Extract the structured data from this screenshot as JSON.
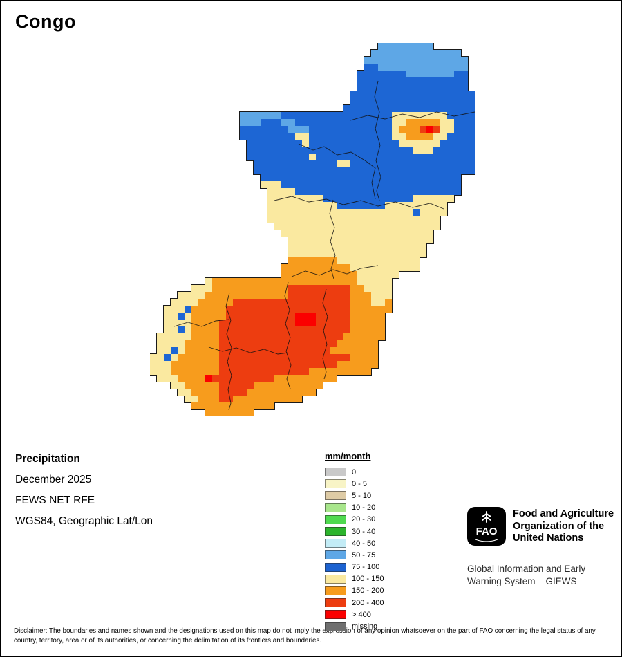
{
  "title": "Congo",
  "info": {
    "label": "Precipitation",
    "date": "December 2025",
    "source": "FEWS NET RFE",
    "projection": "WGS84, Geographic Lat/Lon"
  },
  "legend": {
    "title": "mm/month",
    "entries": [
      {
        "label": "0",
        "color": "#C9C9C9"
      },
      {
        "label": "0 - 5",
        "color": "#F8F4C6"
      },
      {
        "label": "5 - 10",
        "color": "#DECBA5"
      },
      {
        "label": "10 - 20",
        "color": "#A8E68C"
      },
      {
        "label": "20 - 30",
        "color": "#4FDA4F"
      },
      {
        "label": "30 - 40",
        "color": "#2CB42C"
      },
      {
        "label": "40 - 50",
        "color": "#C3ECF6"
      },
      {
        "label": "50 - 75",
        "color": "#5EA7E6"
      },
      {
        "label": "75 - 100",
        "color": "#1C62D0"
      },
      {
        "label": "100 - 150",
        "color": "#FAE9A0"
      },
      {
        "label": "150 - 200",
        "color": "#F79C1D"
      },
      {
        "label": "200 - 400",
        "color": "#ED3D10"
      },
      {
        "label": "> 400",
        "color": "#FB0000"
      },
      {
        "label": "missing",
        "color": "#6F6F6F"
      }
    ]
  },
  "map": {
    "cell": 10,
    "colors": {
      "l": "#5EA7E6",
      "b": "#1D66D4",
      "y": "#FAE9A0",
      "o": "#F79C1D",
      "r": "#ED3D10",
      "R": "#FB0000"
    },
    "grid": [
      ".................................llllllll......",
      "................................lllllllllllll..",
      "...............................lllllllllllllll.",
      "...............................bblllllllllllll.",
      "..............................bbbbbbblllllllbb.",
      "..............................bbbbbbbbbbbbbbbb.",
      "..............................bbbbbbbbbbbbbbbb.",
      ".............................bbbbbbbbbbbbbbbbbb",
      ".............................bbbbbbbbbbbbbbbbbb",
      "............................bbbbbbbbbbbbbbbbbbb",
      ".............llllllbbbbbbbbbbbbbbbbyyyyyyyybbbb",
      ".............lllbbbllbbbbbbbbbbbbbbyyoooooyybbb",
      ".............bbbbbbblllbbbbbbbbbbbbyooorRryybbb",
      ".............bbbbbbbbyybbbbbbbbbbbbyyooooyybbbb",
      "..............bbbbbbbbybbbbbbbbbbbbbyyyyyybbbbb",
      "..............bbbbbbbbbbbbbbbbbbbbbbbbyyybbbbbb",
      "..............bbbbbbbbbybbbbbbbbbbbbbbbbbbbbbbb",
      "...............bbbbbbbbbbbbyybbbbbbbbbbbbbbbbbb",
      "...............bbbbbbbbbbbbbbbbbbbbbbbbbbbbbbbb",
      "................bbbbbbbbbbbbbbbbbbbbbbbbbbbbb..",
      "................yyybbbbbbbbbbbbbbbbbbbbbbbbbb..",
      ".................yyyybbbbbbbbbbbbbbbbbbbbbbbb..",
      ".................yyyyyyyybbbbbbbbbbbbbyyyyyy...",
      ".................yyyyyyyyyybbbbbbbyyyyyyyyy....",
      ".................yyyyyyyyyyyyyyyyyyyyybyyyy....",
      ".................yyyyyyyyyyyyyyyyyyyyyyyyy.....",
      "..................yyyyyyyyyyyyyyyyyyyyyyyy.....",
      "...................yyyyyyyyyyyyyyyyyyyyyy......",
      "....................yyyyyyyyyyyyyyyyyyyyy......",
      "....................yyyyyyyyyyyyyyyyyyyy.......",
      "....................yyyyyyyyyyyyyyyyyyyy.......",
      "....................oooooooyyyyyyyyyyyy........",
      "...................ooooooooooyyyyyyyyyy........",
      "...................oooooooooooyyyyyy...........",
      "........yoooooooooooooooooooooyyyyy............",
      "......yyyooooooooooorrrrrrrrrooyyyy............",
      "....yyyyoooooooooooorrrrrrrrroooyyy............",
      "...yyyyooooorrrrrrrrrrrrrrrrroooyyo............",
      "..yyybooooorrrrrrrrrrrrrrrrrroooooo............",
      "..yybyooooorrrrrrrrrrRRRrrrrrooooo.............",
      "..yyyyoooorrrrrrrrrrrRRRrrrrrooooo.............",
      "..yybyoooorrrrrrrrrrrrrrrrrrrooooo.............",
      ".yyyyyoooorrrrrrrrrrrrrrrrrroooooo.............",
      ".yyyyooooorrrrrrrrrrrrrrrrroooooo..............",
      ".yybyooooorrrrrrrrrrrrrrrrooooooo..............",
      "yybyoooooorrrrrrrrrrrrrrrrrrroooo..............",
      "yyyooooooorrrrrrrrrrrrrrrrroooooo..............",
      "yyyooooooorrrrrrrrrrrrrooooooooo...............",
      ".yyyooooRrrrrrrrrrooooooooo....................",
      "...yyooooorrrrroooooooooo......................",
      "....yyoooorrrroooooooooo.......................",
      ".....yyooorroooooooooo.........................",
      "......oooooooooooo.............................",
      "........ooooooo................................"
    ],
    "boundaries": [
      "290,112 315,105 340,110 365,103 390,108 415,100 440,106 470,100",
      "330,55 325,78 332,100 326,124 333,148 327,170 334,194 328,214 332,228",
      "215,146 236,155 252,150 271,162 291,158 311,170 326,181 321,202 326,226",
      "180,228 205,222 230,230 255,226 280,234 305,228 330,236 355,230 380,238 405,232 425,240",
      "265,227 260,247 267,267 261,287 268,307 262,327 266,341",
      "205,338 225,330 245,336 265,328 285,334 305,326 330,322",
      "200,346 195,366 202,386 196,406 203,426 197,446 204,466 198,486 203,500",
      "115,361 110,381 117,401 111,421 118,441 112,461 118,481 113,501 117,521 114,531",
      "255,356 250,376 257,396 251,416 256,436 250,456 255,476 252,486",
      "35,410 55,404 75,410 95,402 115,400",
      "85,440 105,446 125,441 145,448 165,443 185,450 200,448"
    ]
  },
  "org": {
    "logo_text": "FAO",
    "name_lines": [
      "Food and Agriculture",
      "Organization of the",
      "United Nations"
    ],
    "giews_lines": [
      "Global Information and Early",
      "Warning System – GIEWS"
    ]
  },
  "disclaimer": "Disclaimer: The boundaries and names shown and the designations used on this map do not imply the expression of any opinion whatsoever on the part of FAO concerning the legal status of any country, territory, area or of its authorities, or concerning the delimitation of its frontiers and boundaries."
}
